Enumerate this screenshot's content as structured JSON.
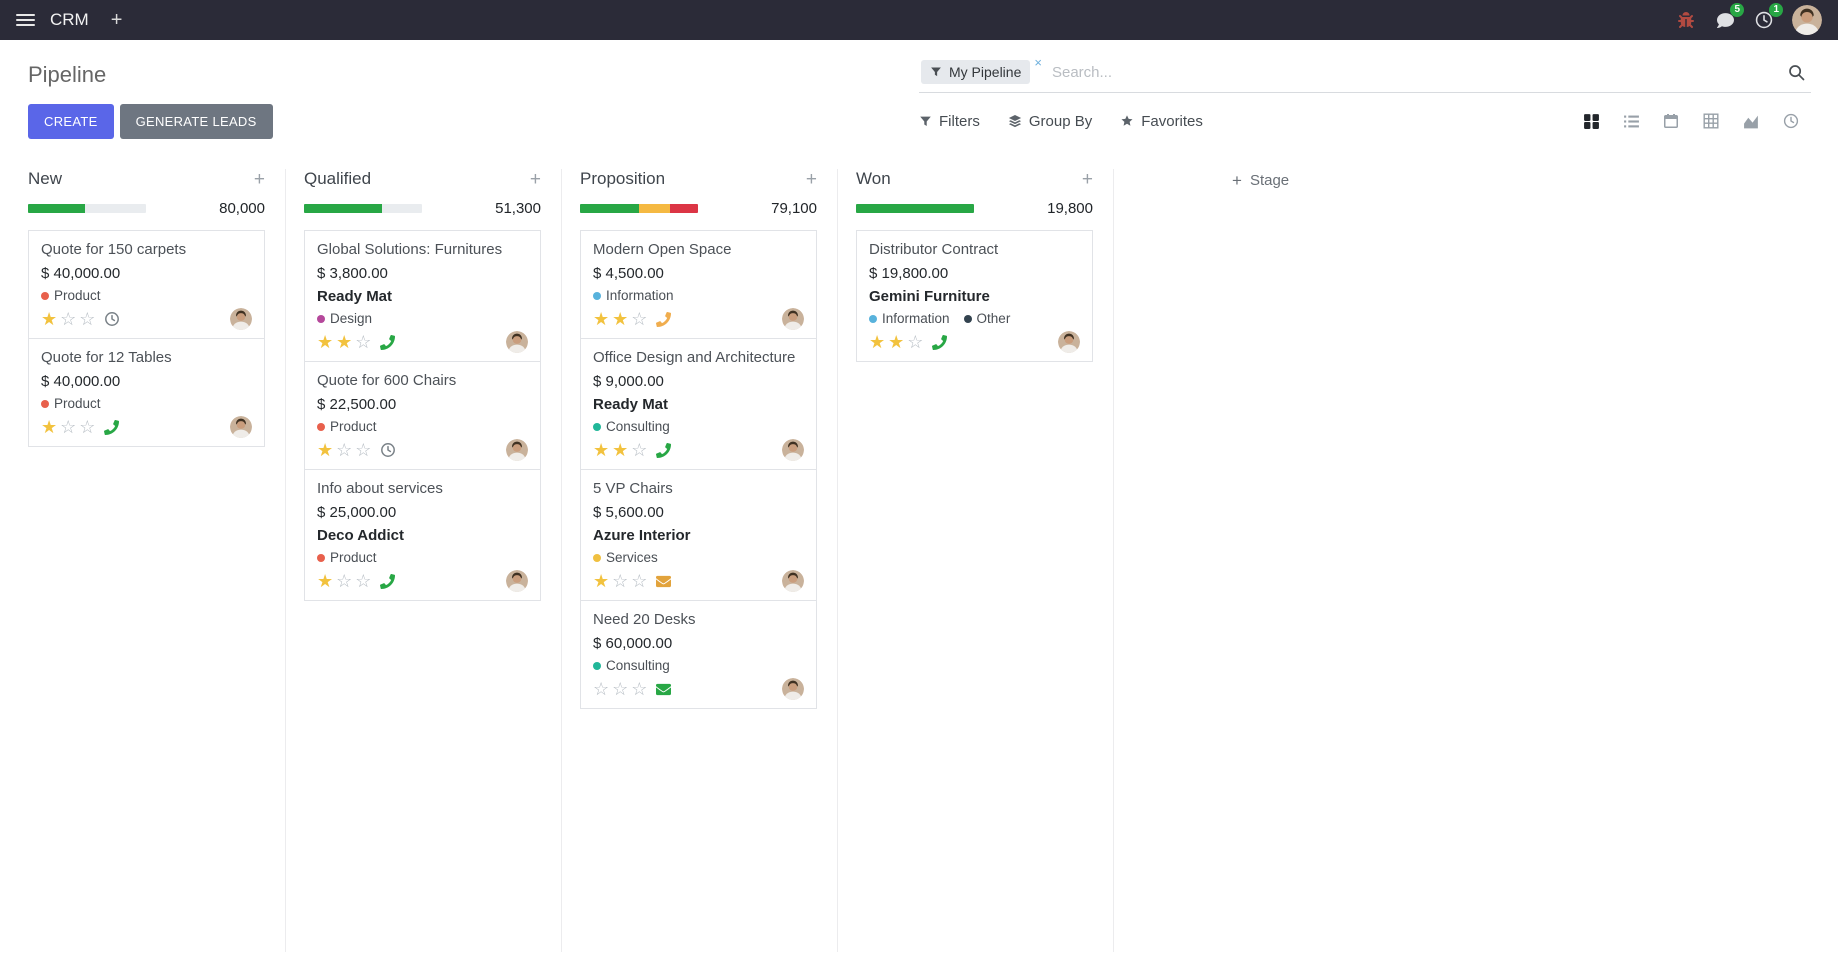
{
  "topbar": {
    "app_name": "CRM",
    "plus_symbol": "+",
    "messages_badge": "5",
    "activities_badge": "1"
  },
  "control": {
    "title": "Pipeline",
    "create_label": "CREATE",
    "generate_leads_label": "GENERATE LEADS",
    "search": {
      "facet_label": "My Pipeline",
      "remove_symbol": "×",
      "placeholder": "Search..."
    },
    "filters_label": "Filters",
    "group_by_label": "Group By",
    "favorites_label": "Favorites"
  },
  "kanban": {
    "add_symbol": "+",
    "add_stage_label": "Stage",
    "columns": [
      {
        "name": "New",
        "counter": "80,000",
        "progress": [
          {
            "color": "#28a745",
            "pct": 48
          }
        ],
        "cards": [
          {
            "title": "Quote for 150 carpets",
            "amount": "$ 40,000.00",
            "tags": [
              {
                "label": "Product",
                "color": "#e8604c"
              }
            ],
            "stars": 1,
            "activity": {
              "icon": "clock-icon",
              "color": "#7a8288"
            }
          },
          {
            "title": "Quote for 12 Tables",
            "amount": "$ 40,000.00",
            "tags": [
              {
                "label": "Product",
                "color": "#e8604c"
              }
            ],
            "stars": 1,
            "activity": {
              "icon": "phone-icon",
              "color": "#28a745"
            }
          }
        ]
      },
      {
        "name": "Qualified",
        "counter": "51,300",
        "progress": [
          {
            "color": "#28a745",
            "pct": 66
          }
        ],
        "cards": [
          {
            "title": "Global Solutions: Furnitures",
            "amount": "$ 3,800.00",
            "partner": "Ready Mat",
            "tags": [
              {
                "label": "Design",
                "color": "#b5489b"
              }
            ],
            "stars": 2,
            "activity": {
              "icon": "phone-icon",
              "color": "#28a745"
            }
          },
          {
            "title": "Quote for 600 Chairs",
            "amount": "$ 22,500.00",
            "tags": [
              {
                "label": "Product",
                "color": "#e8604c"
              }
            ],
            "stars": 1,
            "activity": {
              "icon": "clock-icon",
              "color": "#7a8288"
            }
          },
          {
            "title": "Info about services",
            "amount": "$ 25,000.00",
            "partner": "Deco Addict",
            "tags": [
              {
                "label": "Product",
                "color": "#e8604c"
              }
            ],
            "stars": 1,
            "activity": {
              "icon": "phone-icon",
              "color": "#28a745"
            }
          }
        ]
      },
      {
        "name": "Proposition",
        "counter": "79,100",
        "progress": [
          {
            "color": "#28a745",
            "pct": 50
          },
          {
            "color": "#f5b942",
            "pct": 26
          },
          {
            "color": "#dc3545",
            "pct": 24
          }
        ],
        "cards": [
          {
            "title": "Modern Open Space",
            "amount": "$ 4,500.00",
            "tags": [
              {
                "label": "Information",
                "color": "#58b2dc"
              }
            ],
            "stars": 2,
            "activity": {
              "icon": "phone-icon",
              "color": "#f0ad4e"
            }
          },
          {
            "title": "Office Design and Architecture",
            "amount": "$ 9,000.00",
            "partner": "Ready Mat",
            "tags": [
              {
                "label": "Consulting",
                "color": "#21b799"
              }
            ],
            "stars": 2,
            "activity": {
              "icon": "phone-icon",
              "color": "#28a745"
            }
          },
          {
            "title": "5 VP Chairs",
            "amount": "$ 5,600.00",
            "partner": "Azure Interior",
            "tags": [
              {
                "label": "Services",
                "color": "#f0c040"
              }
            ],
            "stars": 1,
            "activity": {
              "icon": "envelope-icon",
              "color": "#e2a33c"
            }
          },
          {
            "title": "Need 20 Desks",
            "amount": "$ 60,000.00",
            "tags": [
              {
                "label": "Consulting",
                "color": "#21b799"
              }
            ],
            "stars": 0,
            "activity": {
              "icon": "envelope-icon",
              "color": "#28a745"
            }
          }
        ]
      },
      {
        "name": "Won",
        "counter": "19,800",
        "progress": [
          {
            "color": "#28a745",
            "pct": 100
          }
        ],
        "cards": [
          {
            "title": "Distributor Contract",
            "amount": "$ 19,800.00",
            "partner": "Gemini Furniture",
            "tags": [
              {
                "label": "Information",
                "color": "#58b2dc"
              },
              {
                "label": "Other",
                "color": "#33434f"
              }
            ],
            "stars": 2,
            "activity": {
              "icon": "phone-icon",
              "color": "#28a745"
            }
          }
        ]
      }
    ]
  },
  "colors": {
    "topbar_bg": "#2b2b38",
    "accent": "#5a66e8",
    "secondary_button": "#6e7681",
    "success": "#28a745",
    "warning": "#f5b942",
    "danger": "#dc3545",
    "star_gold": "#f2c23e",
    "progress_track": "#e9ecef"
  }
}
